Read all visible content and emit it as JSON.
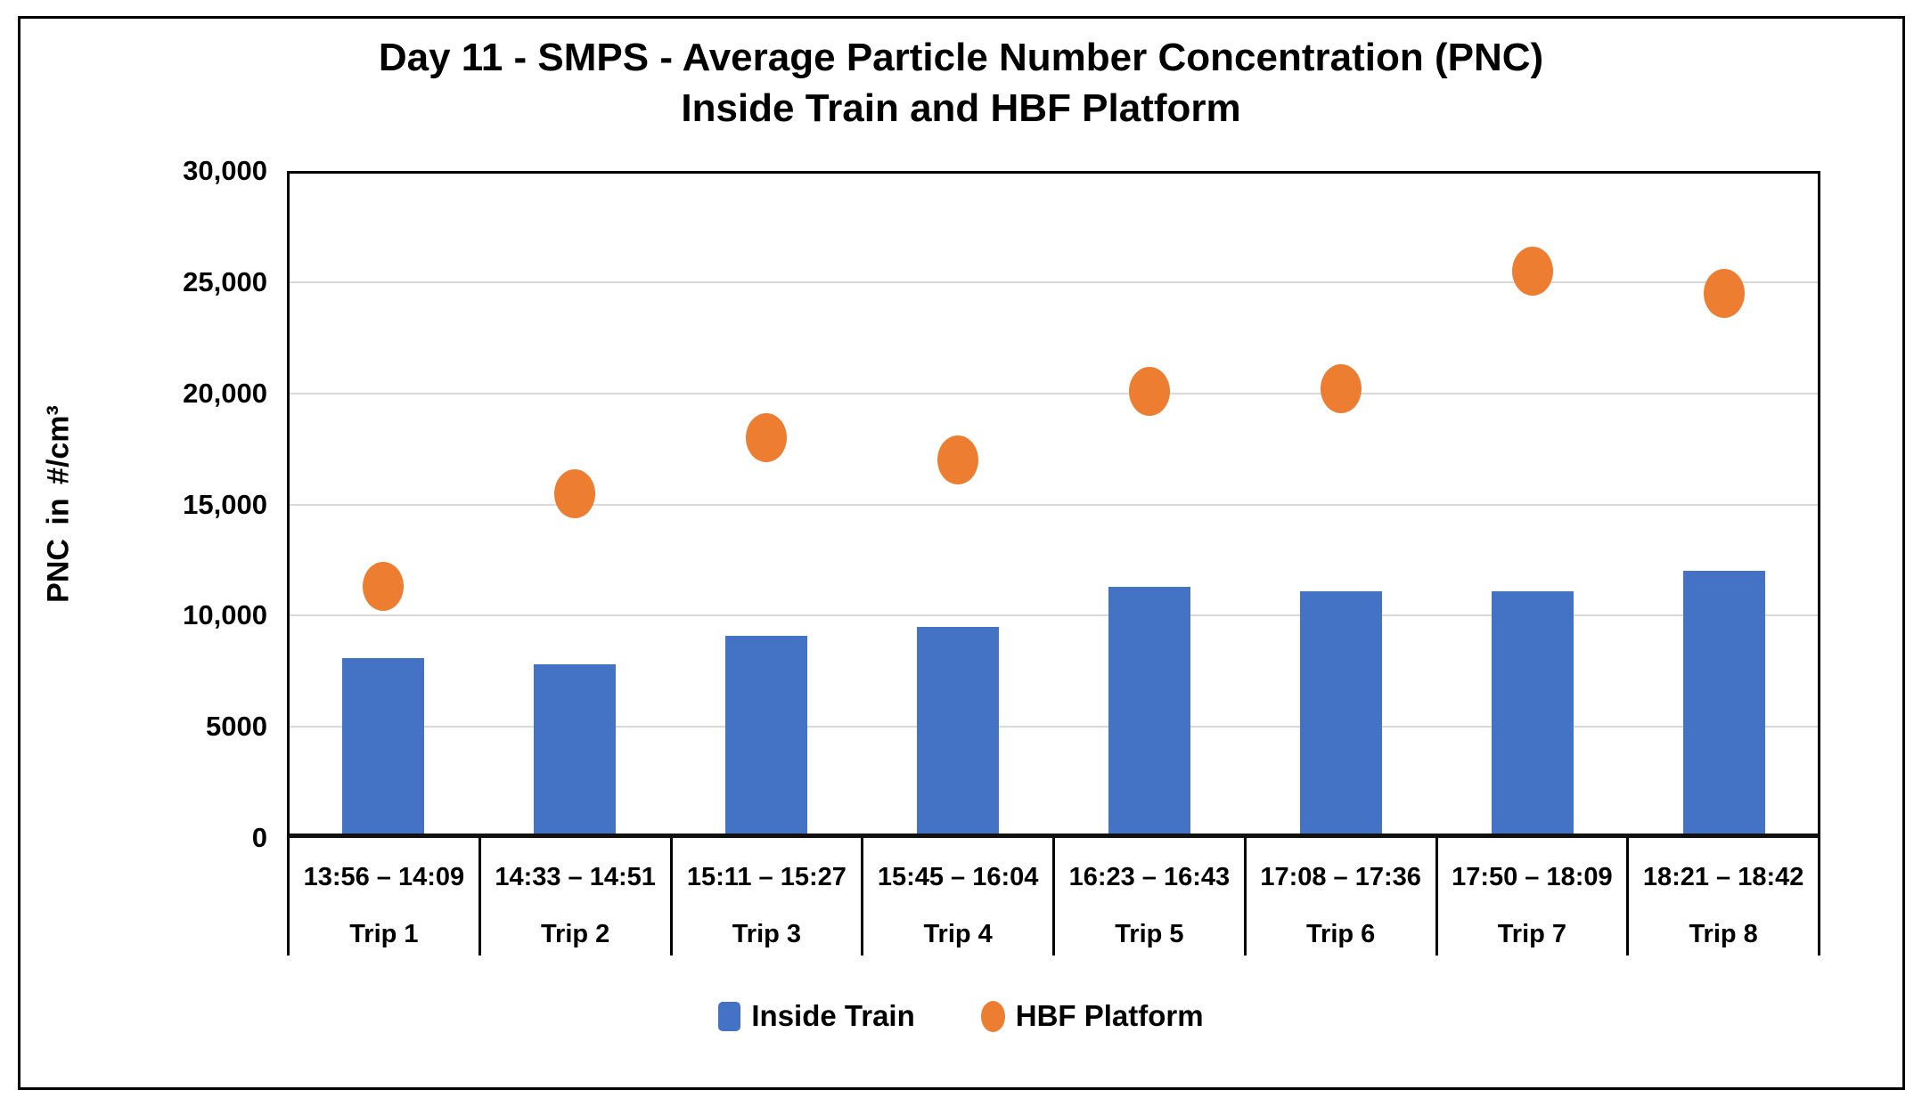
{
  "chart_data": {
    "type": "combo-bar-scatter",
    "title": "Day 11 - SMPS - Average Particle Number Concentration (PNC)",
    "subtitle": "Inside Train and HBF Platform",
    "ylabel": "PNC in #/cm³",
    "ylim": [
      0,
      30000
    ],
    "ytick_values": [
      0,
      5000,
      10000,
      15000,
      20000,
      25000,
      30000
    ],
    "ytick_labels": [
      "0",
      "5000",
      "10,000",
      "15,000",
      "20,000",
      "25,000",
      "30,000"
    ],
    "grid": true,
    "legend_position": "bottom-center",
    "categories": [
      {
        "trip": "Trip 1",
        "time": "13:56 – 14:09"
      },
      {
        "trip": "Trip 2",
        "time": "14:33 – 14:51"
      },
      {
        "trip": "Trip 3",
        "time": "15:11 – 15:27"
      },
      {
        "trip": "Trip 4",
        "time": "15:45 – 16:04"
      },
      {
        "trip": "Trip 5",
        "time": "16:23 – 16:43"
      },
      {
        "trip": "Trip 6",
        "time": "17:08 – 17:36"
      },
      {
        "trip": "Trip 7",
        "time": "17:50 – 18:09"
      },
      {
        "trip": "Trip 8",
        "time": "18:21 – 18:42"
      }
    ],
    "series": [
      {
        "name": "Inside Train",
        "type": "bar",
        "color": "#4472C4",
        "values": [
          8100,
          7800,
          9100,
          9500,
          11300,
          11100,
          11100,
          12000
        ]
      },
      {
        "name": "HBF Platform",
        "type": "scatter",
        "color": "#ED7D31",
        "values": [
          11300,
          15500,
          18000,
          17000,
          20100,
          20200,
          25500,
          24500
        ]
      }
    ]
  },
  "colors": {
    "bar": "#4472C4",
    "dot": "#ED7D31",
    "gridline": "#D9D9D9",
    "axis": "#000000",
    "text": "#000000"
  }
}
